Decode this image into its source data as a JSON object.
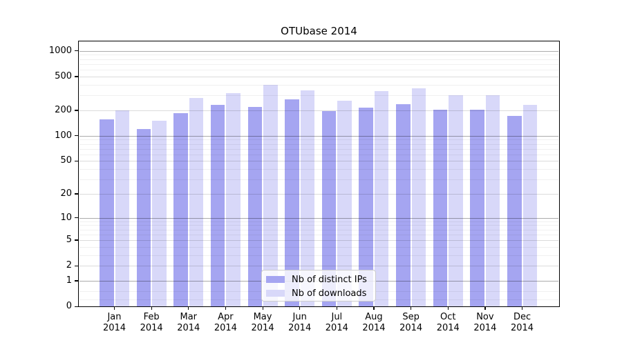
{
  "chart_data": {
    "type": "bar",
    "title": "OTUbase 2014",
    "categories": [
      "Jan 2014",
      "Feb 2014",
      "Mar 2014",
      "Apr 2014",
      "May 2014",
      "Jun 2014",
      "Jul 2014",
      "Aug 2014",
      "Sep 2014",
      "Oct 2014",
      "Nov 2014",
      "Dec 2014"
    ],
    "series": [
      {
        "name": "Nb of distinct IPs",
        "color": "#a5a5f1",
        "values": [
          155,
          120,
          185,
          230,
          220,
          270,
          195,
          215,
          235,
          205,
          205,
          170
        ]
      },
      {
        "name": "Nb of downloads",
        "color": "#d8d8f9",
        "values": [
          200,
          150,
          280,
          320,
          395,
          345,
          260,
          340,
          360,
          300,
          300,
          230
        ]
      }
    ],
    "y_scale": "log(1+x)",
    "y_ticks": [
      0,
      1,
      2,
      5,
      10,
      20,
      50,
      100,
      200,
      500,
      1000
    ],
    "ylim": [
      0,
      1300
    ],
    "grid": true,
    "legend_position": "lower center",
    "axis_color": "#000000",
    "background_color": "#ffffff"
  }
}
